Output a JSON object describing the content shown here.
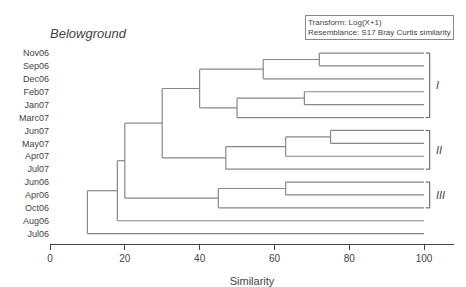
{
  "chart_data": {
    "type": "dendrogram",
    "title": "Belowground",
    "xlabel": "Similarity",
    "annotation": "Transform: Log(X+1)\nResemblance: S17 Bray Curtis similarity",
    "categories": [
      "Nov06",
      "Sep06",
      "Dec06",
      "Feb07",
      "Jan07",
      "Marc07",
      "Jun07",
      "May07",
      "Apr07",
      "Jul07",
      "Jun06",
      "Apr06",
      "Oct06",
      "Aug06",
      "Jul06"
    ],
    "leaf_similarity": 100,
    "tree": {
      "similarity": 10,
      "children": [
        {
          "similarity": 18,
          "children": [
            {
              "similarity": 20,
              "children": [
                {
                  "similarity": 30,
                  "children": [
                    {
                      "similarity": 40,
                      "children": [
                        {
                          "similarity": 57,
                          "children": [
                            {
                              "similarity": 72,
                              "children": [
                                "Nov06",
                                "Sep06"
                              ]
                            },
                            "Dec06"
                          ]
                        },
                        {
                          "similarity": 50,
                          "children": [
                            {
                              "similarity": 68,
                              "children": [
                                "Feb07",
                                "Jan07"
                              ]
                            },
                            "Marc07"
                          ]
                        }
                      ]
                    },
                    {
                      "similarity": 47,
                      "children": [
                        {
                          "similarity": 63,
                          "children": [
                            {
                              "similarity": 75,
                              "children": [
                                "Jun07",
                                "May07"
                              ]
                            },
                            "Apr07"
                          ]
                        },
                        "Jul07"
                      ]
                    }
                  ]
                },
                {
                  "similarity": 45,
                  "children": [
                    {
                      "similarity": 63,
                      "children": [
                        "Jun06",
                        "Apr06"
                      ]
                    },
                    "Oct06"
                  ]
                }
              ]
            },
            "Aug06"
          ]
        },
        "Jul06"
      ]
    },
    "groups": [
      {
        "label": "I",
        "from": "Nov06",
        "to": "Marc07"
      },
      {
        "label": "II",
        "from": "Jun07",
        "to": "Jul07"
      },
      {
        "label": "III",
        "from": "Jun06",
        "to": "Oct06"
      }
    ],
    "color": "#888888",
    "xlim": [
      0,
      108
    ],
    "xticks": [
      0,
      20,
      40,
      60,
      80,
      100
    ],
    "grid": false
  }
}
